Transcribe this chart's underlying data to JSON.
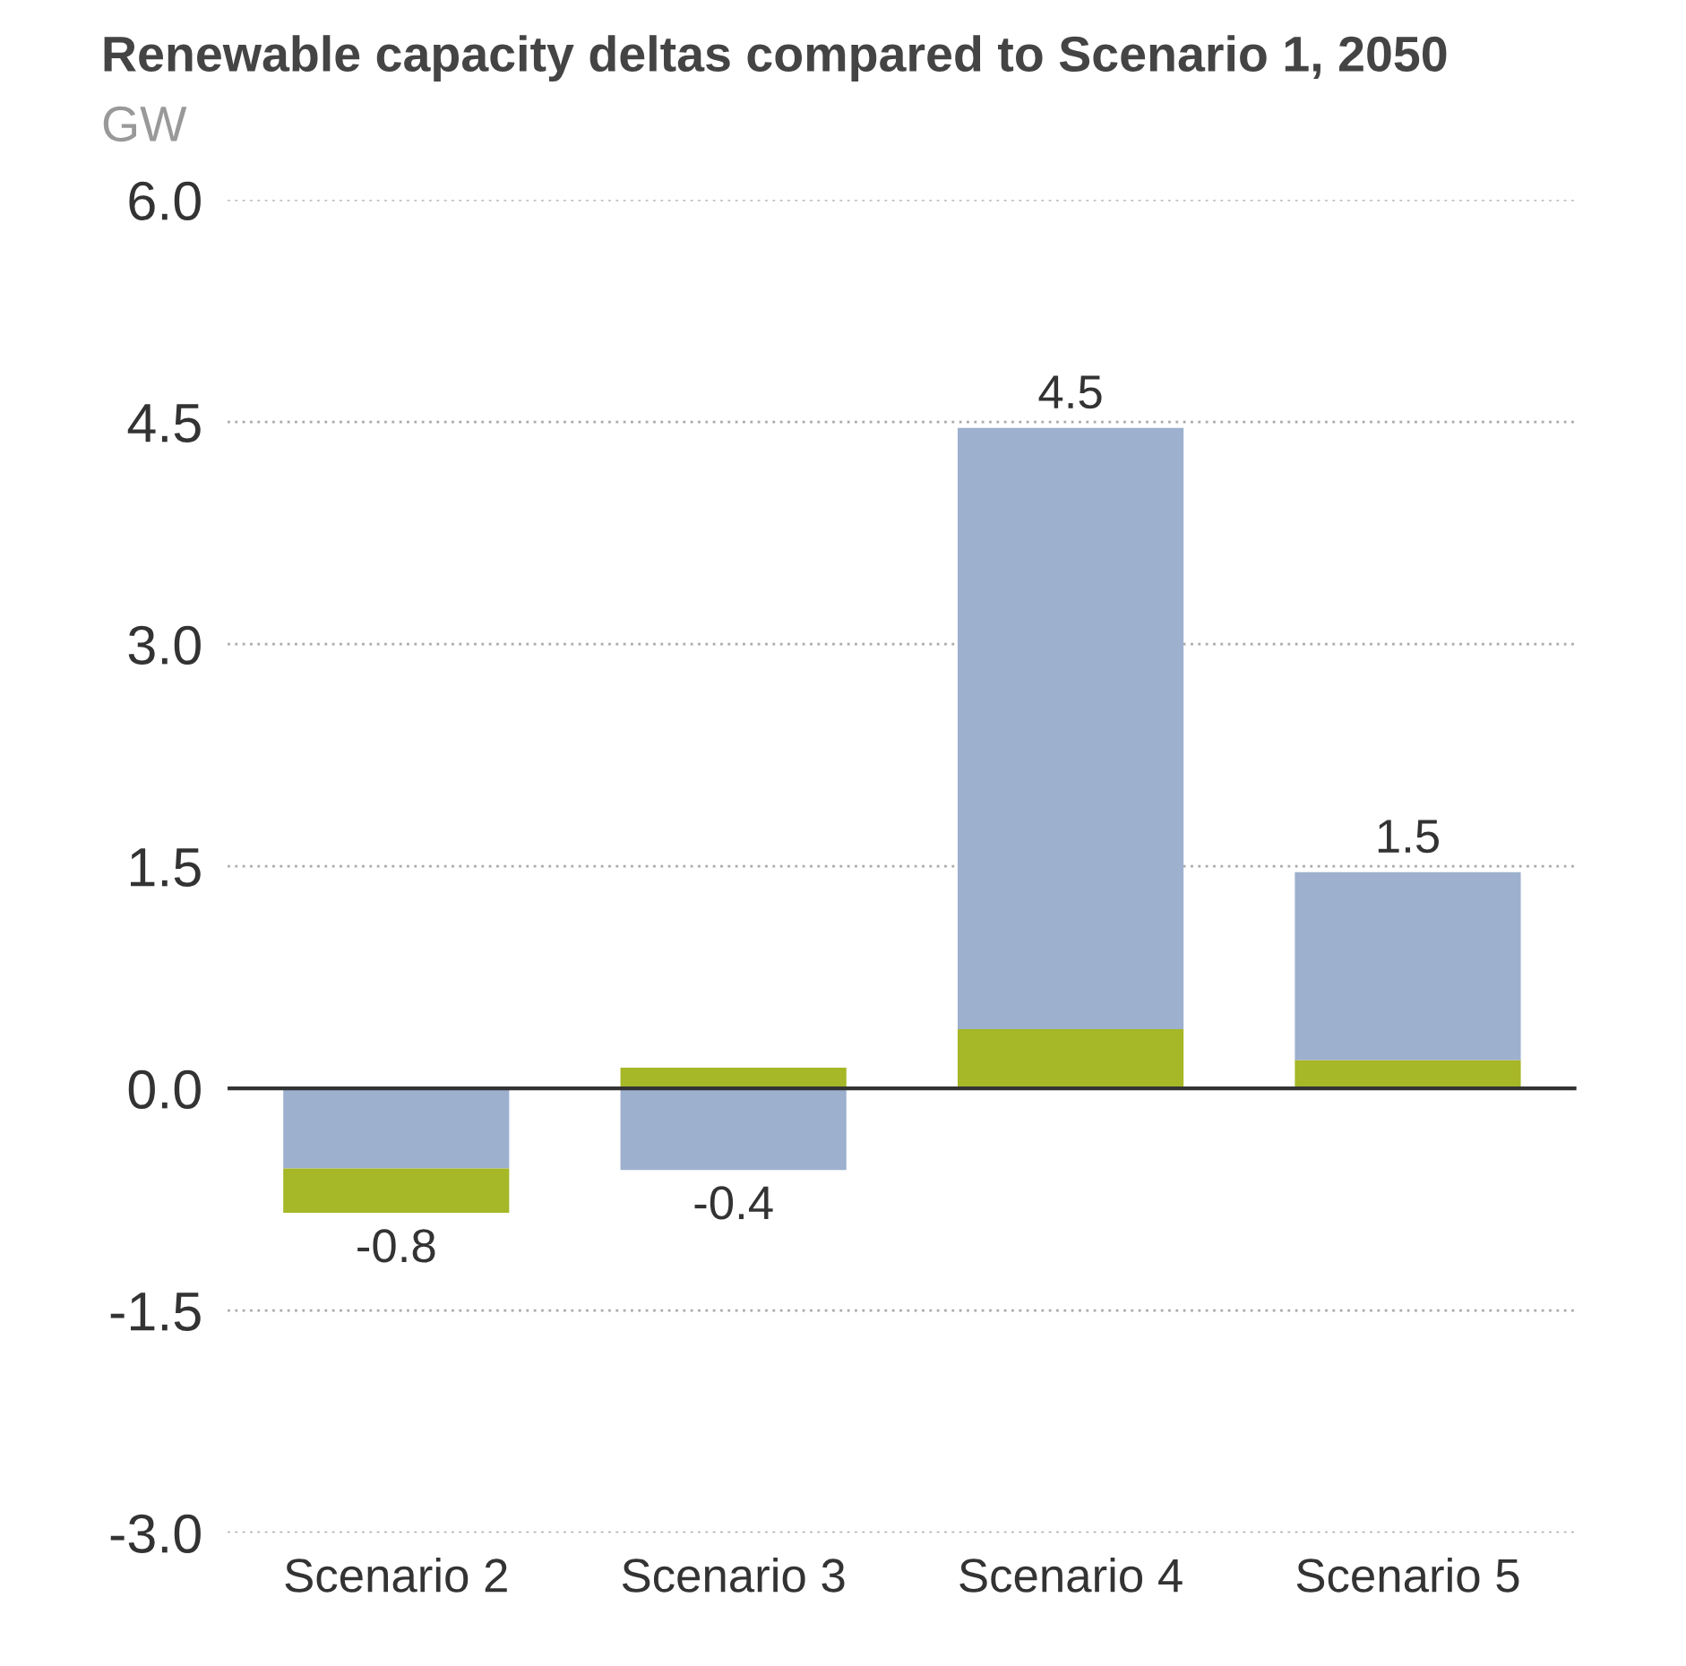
{
  "chart_data": {
    "type": "bar",
    "title": "Renewable capacity deltas compared to Scenario 1, 2050",
    "subtitle": "GW",
    "categories": [
      "Scenario 2",
      "Scenario 3",
      "Scenario 4",
      "Scenario 5"
    ],
    "series": [
      {
        "color": "#9db0ce",
        "values": [
          -0.54,
          -0.55,
          4.06,
          1.27
        ],
        "base": [
          0,
          0,
          0.4,
          0.19
        ]
      },
      {
        "color": "#a6b727",
        "values": [
          -0.3,
          0.14,
          0.4,
          0.19
        ],
        "base": [
          -0.54,
          0,
          0,
          0
        ]
      }
    ],
    "totals": [
      "-0.8",
      "-0.4",
      "4.5",
      "1.5"
    ],
    "ylim": [
      -3.0,
      6.0
    ],
    "yticks": [
      {
        "value": -3.0,
        "label": "-3.0"
      },
      {
        "value": -1.5,
        "label": "-1.5"
      },
      {
        "value": 0,
        "label": "0.0"
      },
      {
        "value": 1.5,
        "label": "1.5"
      },
      {
        "value": 3.0,
        "label": "3.0"
      },
      {
        "value": 4.5,
        "label": "4.5"
      },
      {
        "value": 6.0,
        "label": "6.0"
      }
    ],
    "grid": "y",
    "legend": false
  }
}
